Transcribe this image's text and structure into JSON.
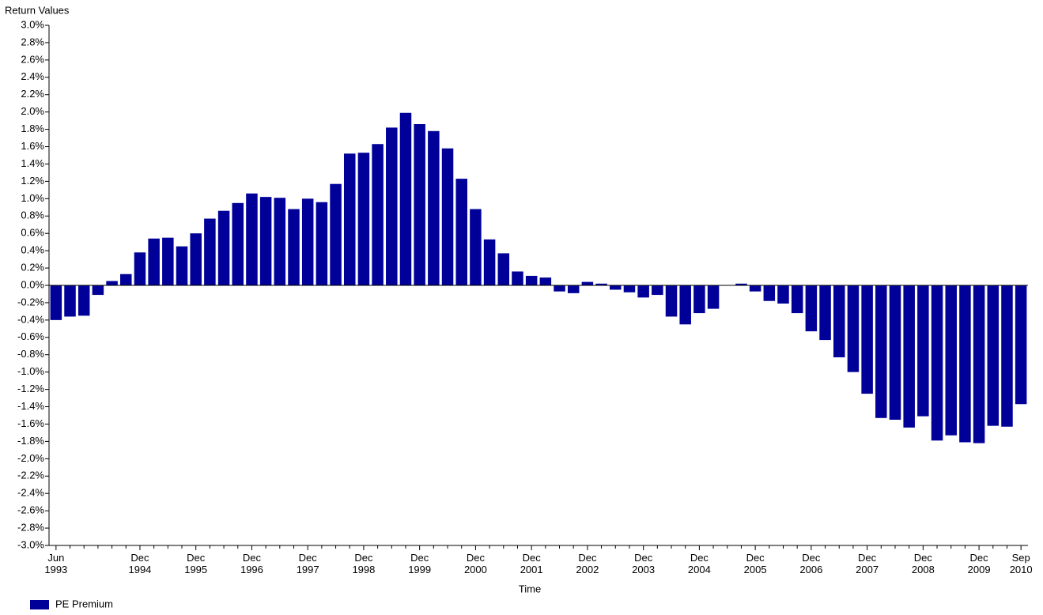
{
  "chart_data": {
    "type": "bar",
    "y_axis_label": "Return Values",
    "x_axis_label": "Time",
    "categories": [
      "Jun\n1993",
      null,
      null,
      null,
      null,
      null,
      "Dec\n1994",
      null,
      null,
      null,
      "Dec\n1995",
      null,
      null,
      null,
      "Dec\n1996",
      null,
      null,
      null,
      "Dec\n1997",
      null,
      null,
      null,
      "Dec\n1998",
      null,
      null,
      null,
      "Dec\n1999",
      null,
      null,
      null,
      "Dec\n2000",
      null,
      null,
      null,
      "Dec\n2001",
      null,
      null,
      null,
      "Dec\n2002",
      null,
      null,
      null,
      "Dec\n2003",
      null,
      null,
      null,
      "Dec\n2004",
      null,
      null,
      null,
      "Dec\n2005",
      null,
      null,
      null,
      "Dec\n2006",
      null,
      null,
      null,
      "Dec\n2007",
      null,
      null,
      null,
      "Dec\n2008",
      null,
      null,
      null,
      "Dec\n2009",
      null,
      null,
      "Sep\n2010"
    ],
    "series": [
      {
        "name": "PE Premium",
        "color": "#000099",
        "values": [
          -0.4,
          -0.36,
          -0.35,
          -0.11,
          0.05,
          0.13,
          0.38,
          0.54,
          0.55,
          0.45,
          0.6,
          0.77,
          0.86,
          0.95,
          1.06,
          1.02,
          1.01,
          0.88,
          1.0,
          0.96,
          1.17,
          1.52,
          1.53,
          1.63,
          1.82,
          1.99,
          1.86,
          1.78,
          1.58,
          1.23,
          0.88,
          0.53,
          0.37,
          0.16,
          0.11,
          0.09,
          -0.07,
          -0.09,
          0.04,
          0.02,
          -0.05,
          -0.08,
          -0.14,
          -0.11,
          -0.36,
          -0.45,
          -0.32,
          -0.27,
          0,
          0.02,
          -0.07,
          -0.18,
          -0.21,
          -0.32,
          -0.53,
          -0.63,
          -0.83,
          -1.0,
          -1.25,
          -1.53,
          -1.55,
          -1.64,
          -1.51,
          -1.79,
          -1.73,
          -1.81,
          -1.82,
          -1.62,
          -1.63,
          -1.37
        ]
      }
    ],
    "ylim": [
      -3.0,
      3.0
    ],
    "yticks": [
      {
        "value": -3.0,
        "label": "-3.0%"
      },
      {
        "value": -2.8,
        "label": "-2.8%"
      },
      {
        "value": -2.6,
        "label": "-2.6%"
      },
      {
        "value": -2.4,
        "label": "-2.4%"
      },
      {
        "value": -2.2,
        "label": "-2.2%"
      },
      {
        "value": -2.0,
        "label": "-2.0%"
      },
      {
        "value": -1.8,
        "label": "-1.8%"
      },
      {
        "value": -1.6,
        "label": "-1.6%"
      },
      {
        "value": -1.4,
        "label": "-1.4%"
      },
      {
        "value": -1.2,
        "label": "-1.2%"
      },
      {
        "value": -1.0,
        "label": "-1.0%"
      },
      {
        "value": -0.8,
        "label": "-0.8%"
      },
      {
        "value": -0.6,
        "label": "-0.6%"
      },
      {
        "value": -0.4,
        "label": "-0.4%"
      },
      {
        "value": -0.2,
        "label": "-0.2%"
      },
      {
        "value": 0.0,
        "label": "0.0%"
      },
      {
        "value": 0.2,
        "label": "0.2%"
      },
      {
        "value": 0.4,
        "label": "0.4%"
      },
      {
        "value": 0.6,
        "label": "0.6%"
      },
      {
        "value": 0.8,
        "label": "0.8%"
      },
      {
        "value": 1.0,
        "label": "1.0%"
      },
      {
        "value": 1.2,
        "label": "1.2%"
      },
      {
        "value": 1.4,
        "label": "1.4%"
      },
      {
        "value": 1.6,
        "label": "1.6%"
      },
      {
        "value": 1.8,
        "label": "1.8%"
      },
      {
        "value": 2.0,
        "label": "2.0%"
      },
      {
        "value": 2.2,
        "label": "2.2%"
      },
      {
        "value": 2.4,
        "label": "2.4%"
      },
      {
        "value": 2.6,
        "label": "2.6%"
      },
      {
        "value": 2.8,
        "label": "2.8%"
      },
      {
        "value": 3.0,
        "label": "3.0%"
      }
    ],
    "legend": "bottom-left"
  }
}
